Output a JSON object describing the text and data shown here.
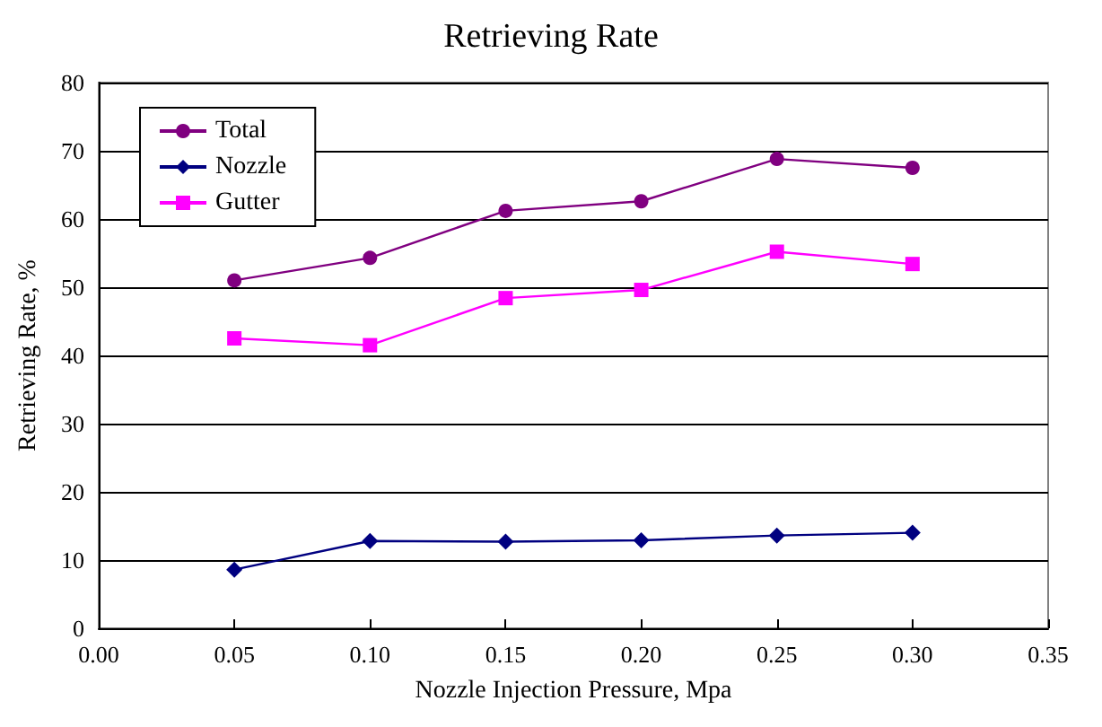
{
  "chart_data": {
    "type": "line",
    "title": "Retrieving Rate",
    "xlabel": "Nozzle Injection Pressure, Mpa",
    "ylabel": "Retrieving Rate, %",
    "x": [
      0.05,
      0.1,
      0.15,
      0.2,
      0.25,
      0.3
    ],
    "series": [
      {
        "name": "Total",
        "color": "#800080",
        "marker": "circle",
        "values": [
          51,
          54.3,
          61.2,
          62.6,
          68.8,
          67.5
        ]
      },
      {
        "name": "Nozzle",
        "color": "#000080",
        "marker": "diamond",
        "values": [
          8.6,
          12.8,
          12.7,
          12.9,
          13.6,
          14.0
        ]
      },
      {
        "name": "Gutter",
        "color": "#ff00ff",
        "marker": "square",
        "values": [
          42.5,
          41.5,
          48.4,
          49.6,
          55.2,
          53.4
        ]
      }
    ],
    "xlim": [
      0,
      0.35
    ],
    "xticks": [
      {
        "value": 0,
        "label": "0.00"
      },
      {
        "value": 0.05,
        "label": "0.05"
      },
      {
        "value": 0.1,
        "label": "0.10"
      },
      {
        "value": 0.15,
        "label": "0.15"
      },
      {
        "value": 0.2,
        "label": "0.20"
      },
      {
        "value": 0.25,
        "label": "0.25"
      },
      {
        "value": 0.3,
        "label": "0.30"
      },
      {
        "value": 0.35,
        "label": "0.35"
      }
    ],
    "ylim": [
      0,
      80
    ],
    "yticks": [
      0,
      10,
      20,
      30,
      40,
      50,
      60,
      70,
      80
    ],
    "grid": "y",
    "legend": "top left",
    "line_style": "solid"
  }
}
